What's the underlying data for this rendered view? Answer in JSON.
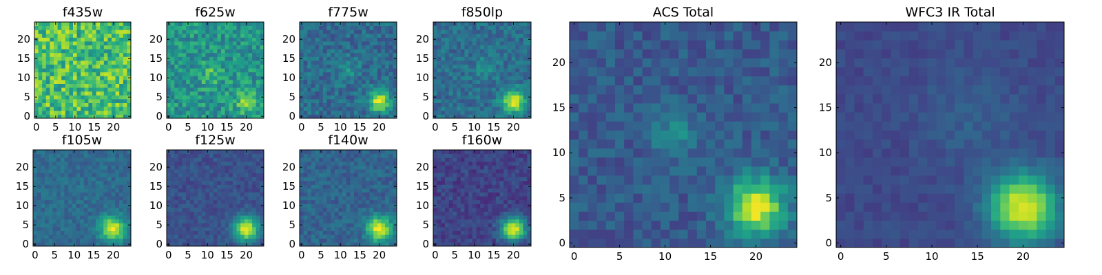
{
  "figure": {
    "description": "Grid of astronomical image cutouts",
    "colormap": "viridis"
  },
  "chart_data": [
    {
      "type": "heatmap",
      "title": "f435w",
      "xlim": [
        0,
        24
      ],
      "ylim": [
        0,
        24
      ],
      "xticks": [
        "0",
        "5",
        "10",
        "15",
        "20"
      ],
      "yticks": [
        "0",
        "5",
        "10",
        "15",
        "20"
      ],
      "noise": 0.22,
      "baseline": 0.7,
      "sources": [],
      "seed": 11
    },
    {
      "type": "heatmap",
      "title": "f625w",
      "xlim": [
        0,
        24
      ],
      "ylim": [
        0,
        24
      ],
      "xticks": [
        "0",
        "5",
        "10",
        "15",
        "20"
      ],
      "yticks": [
        "0",
        "5",
        "10",
        "15",
        "20"
      ],
      "noise": 0.16,
      "baseline": 0.52,
      "sources": [
        {
          "x": 20,
          "y": 4,
          "amp": 0.3,
          "sigma": 2.0
        },
        {
          "x": 11,
          "y": 11,
          "amp": 0.18,
          "sigma": 2.0
        }
      ],
      "seed": 23
    },
    {
      "type": "heatmap",
      "title": "f775w",
      "xlim": [
        0,
        24
      ],
      "ylim": [
        0,
        24
      ],
      "xticks": [
        "0",
        "5",
        "10",
        "15",
        "20"
      ],
      "yticks": [
        "0",
        "5",
        "10",
        "15",
        "20"
      ],
      "noise": 0.12,
      "baseline": 0.35,
      "sources": [
        {
          "x": 20,
          "y": 4,
          "amp": 0.6,
          "sigma": 1.9
        },
        {
          "x": 12,
          "y": 12,
          "amp": 0.14,
          "sigma": 2.0
        }
      ],
      "seed": 37
    },
    {
      "type": "heatmap",
      "title": "f850lp",
      "xlim": [
        0,
        24
      ],
      "ylim": [
        0,
        24
      ],
      "xticks": [
        "0",
        "5",
        "10",
        "15",
        "20"
      ],
      "yticks": [
        "0",
        "5",
        "10",
        "15",
        "20"
      ],
      "noise": 0.11,
      "baseline": 0.36,
      "sources": [
        {
          "x": 20,
          "y": 4,
          "amp": 0.6,
          "sigma": 2.0
        },
        {
          "x": 13,
          "y": 13,
          "amp": 0.14,
          "sigma": 2.0
        }
      ],
      "seed": 41
    },
    {
      "type": "heatmap",
      "title": "f105w",
      "xlim": [
        0,
        24
      ],
      "ylim": [
        0,
        24
      ],
      "xticks": [
        "0",
        "5",
        "10",
        "15",
        "20"
      ],
      "yticks": [
        "0",
        "5",
        "10",
        "15",
        "20"
      ],
      "noise": 0.08,
      "baseline": 0.35,
      "sources": [
        {
          "x": 20,
          "y": 4,
          "amp": 0.62,
          "sigma": 2.2
        }
      ],
      "seed": 53
    },
    {
      "type": "heatmap",
      "title": "f125w",
      "xlim": [
        0,
        24
      ],
      "ylim": [
        0,
        24
      ],
      "xticks": [
        "0",
        "5",
        "10",
        "15",
        "20"
      ],
      "yticks": [
        "0",
        "5",
        "10",
        "15",
        "20"
      ],
      "noise": 0.07,
      "baseline": 0.25,
      "sources": [
        {
          "x": 20,
          "y": 4,
          "amp": 0.72,
          "sigma": 2.2
        }
      ],
      "seed": 61
    },
    {
      "type": "heatmap",
      "title": "f140w",
      "xlim": [
        0,
        24
      ],
      "ylim": [
        0,
        24
      ],
      "xticks": [
        "0",
        "5",
        "10",
        "15",
        "20"
      ],
      "yticks": [
        "0",
        "5",
        "10",
        "15",
        "20"
      ],
      "noise": 0.09,
      "baseline": 0.32,
      "sources": [
        {
          "x": 20,
          "y": 4,
          "amp": 0.66,
          "sigma": 2.3
        }
      ],
      "seed": 71
    },
    {
      "type": "heatmap",
      "title": "f160w",
      "xlim": [
        0,
        24
      ],
      "ylim": [
        0,
        24
      ],
      "xticks": [
        "0",
        "5",
        "10",
        "15",
        "20"
      ],
      "yticks": [
        "0",
        "5",
        "10",
        "15",
        "20"
      ],
      "noise": 0.08,
      "baseline": 0.2,
      "sources": [
        {
          "x": 20,
          "y": 4,
          "amp": 0.78,
          "sigma": 2.2
        }
      ],
      "seed": 83
    },
    {
      "type": "heatmap",
      "title": "ACS Total",
      "xlim": [
        0,
        24
      ],
      "ylim": [
        0,
        24
      ],
      "xticks": [
        "0",
        "5",
        "10",
        "15",
        "20"
      ],
      "yticks": [
        "0",
        "5",
        "10",
        "15",
        "20"
      ],
      "noise": 0.09,
      "baseline": 0.28,
      "sources": [
        {
          "x": 20,
          "y": 4,
          "amp": 0.7,
          "sigma": 2.2
        },
        {
          "x": 11,
          "y": 12,
          "amp": 0.2,
          "sigma": 1.8
        }
      ],
      "seed": 97
    },
    {
      "type": "heatmap",
      "title": "WFC3 IR Total",
      "xlim": [
        0,
        24
      ],
      "ylim": [
        0,
        24
      ],
      "xticks": [
        "0",
        "5",
        "10",
        "15",
        "20"
      ],
      "yticks": [
        "0",
        "5",
        "10",
        "15",
        "20"
      ],
      "noise": 0.045,
      "baseline": 0.22,
      "sources": [
        {
          "x": 20,
          "y": 4,
          "amp": 0.75,
          "sigma": 2.6
        },
        {
          "x": 14,
          "y": 14,
          "amp": 0.08,
          "sigma": 4.0
        }
      ],
      "seed": 103
    }
  ]
}
